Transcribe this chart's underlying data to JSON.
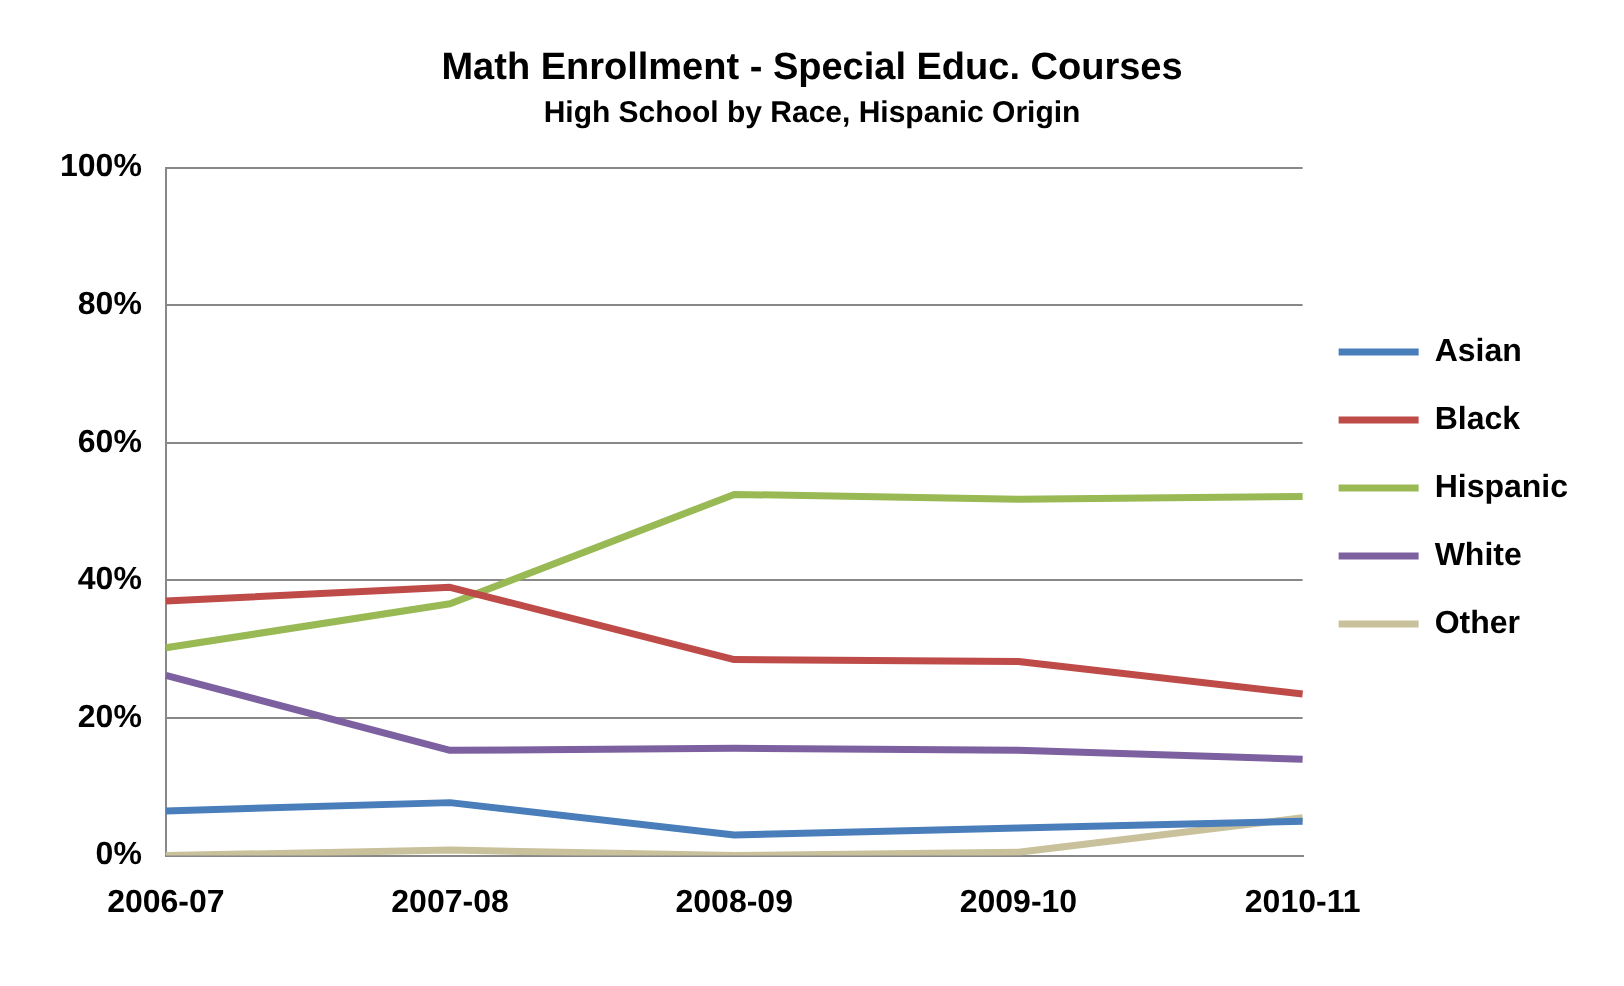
{
  "chart_data": {
    "type": "line",
    "title": "Math Enrollment - Special Educ. Courses",
    "subtitle": "High School by Race, Hispanic Origin",
    "categories": [
      "2006-07",
      "2007-08",
      "2008-09",
      "2009-10",
      "2010-11"
    ],
    "series": [
      {
        "name": "Asian",
        "color": "#4a7ebb",
        "values": [
          6.5,
          7.7,
          3,
          4,
          5
        ]
      },
      {
        "name": "Black",
        "color": "#be4b48",
        "values": [
          37,
          39,
          28.5,
          28.2,
          23.5
        ]
      },
      {
        "name": "Hispanic",
        "color": "#98b954",
        "values": [
          30.2,
          36.6,
          52.5,
          51.8,
          52.2
        ]
      },
      {
        "name": "White",
        "color": "#7d60a0",
        "values": [
          26.2,
          15.3,
          15.6,
          15.3,
          14
        ]
      },
      {
        "name": "Other",
        "color": "#c9c19b",
        "values": [
          0,
          0.8,
          0,
          0.5,
          5.5
        ]
      }
    ],
    "ylim": [
      0,
      100
    ],
    "yticks": [
      {
        "value": 0,
        "label": "0%"
      },
      {
        "value": 20,
        "label": "20%"
      },
      {
        "value": 40,
        "label": "40%"
      },
      {
        "value": 60,
        "label": "60%"
      },
      {
        "value": 80,
        "label": "80%"
      },
      {
        "value": 100,
        "label": "100%"
      }
    ],
    "grid": "y",
    "legend": "right",
    "marker": "none",
    "line_style": "solid"
  }
}
